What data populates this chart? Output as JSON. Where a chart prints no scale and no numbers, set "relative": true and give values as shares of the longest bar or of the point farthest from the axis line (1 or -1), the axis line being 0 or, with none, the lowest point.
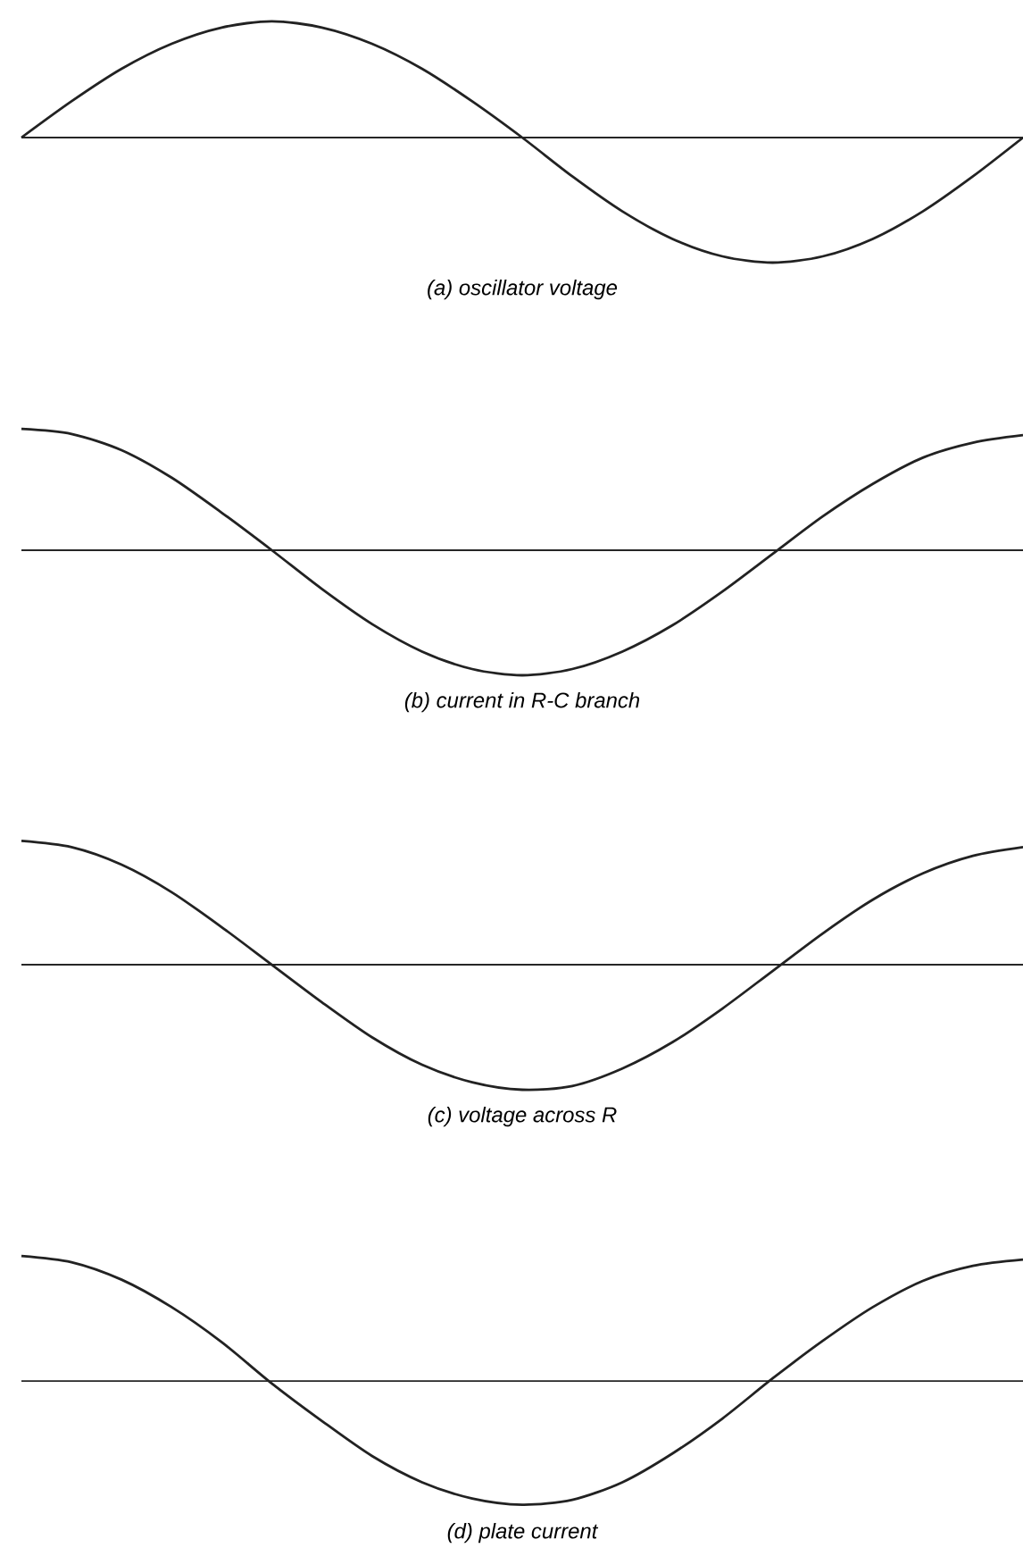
{
  "chart_data": [
    {
      "type": "line",
      "relative": true,
      "title": "(a) oscillator voltage",
      "categories": [
        null,
        null,
        null,
        null,
        null,
        null,
        null,
        null,
        null,
        null,
        null,
        null,
        null,
        null,
        null,
        null,
        null,
        null,
        null,
        null,
        null
      ],
      "series": [
        {
          "color": "#222222",
          "values": [
            0,
            0.29,
            0.55,
            0.75,
            0.88,
            0.93,
            0.88,
            0.75,
            0.55,
            0.29,
            0,
            -0.31,
            -0.59,
            -0.81,
            -0.95,
            -1,
            -0.95,
            -0.81,
            -0.59,
            -0.31,
            0
          ]
        }
      ]
    },
    {
      "type": "line",
      "relative": true,
      "title": "(b) current in R-C branch",
      "categories": [
        null,
        null,
        null,
        null,
        null,
        null,
        null,
        null,
        null,
        null,
        null,
        null,
        null,
        null,
        null,
        null,
        null,
        null,
        null,
        null,
        null
      ],
      "series": [
        {
          "color": "#222222",
          "values": [
            0.97,
            0.93,
            0.8,
            0.58,
            0.3,
            0,
            -0.31,
            -0.59,
            -0.81,
            -0.95,
            -1,
            -0.95,
            -0.81,
            -0.6,
            -0.33,
            -0.03,
            0.27,
            0.53,
            0.74,
            0.86,
            0.92
          ]
        }
      ]
    },
    {
      "type": "line",
      "relative": true,
      "title": "(c) voltage across R",
      "categories": [
        null,
        null,
        null,
        null,
        null,
        null,
        null,
        null,
        null,
        null,
        null,
        null,
        null,
        null,
        null,
        null,
        null,
        null,
        null,
        null,
        null
      ],
      "series": [
        {
          "color": "#222222",
          "values": [
            0.99,
            0.94,
            0.8,
            0.58,
            0.3,
            0,
            -0.3,
            -0.58,
            -0.8,
            -0.94,
            -1,
            -0.97,
            -0.83,
            -0.62,
            -0.35,
            -0.05,
            0.25,
            0.52,
            0.73,
            0.87,
            0.94
          ]
        }
      ]
    },
    {
      "type": "line",
      "relative": true,
      "title": "(d) plate current",
      "categories": [
        null,
        null,
        null,
        null,
        null,
        null,
        null,
        null,
        null,
        null,
        null,
        null,
        null,
        null,
        null,
        null,
        null,
        null,
        null,
        null,
        null
      ],
      "series": [
        {
          "color": "#222222",
          "values": [
            1,
            0.95,
            0.81,
            0.59,
            0.31,
            -0.02,
            -0.32,
            -0.6,
            -0.81,
            -0.94,
            -0.99,
            -0.95,
            -0.81,
            -0.58,
            -0.3,
            0.02,
            0.32,
            0.59,
            0.8,
            0.92,
            0.97
          ]
        }
      ]
    }
  ]
}
